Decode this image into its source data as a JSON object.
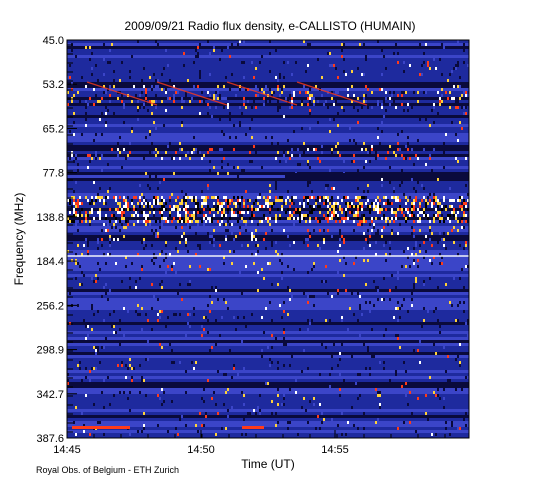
{
  "chart_data": {
    "type": "heatmap",
    "title": "2009/09/21  Radio flux density, e-CALLISTO (HUMAIN)",
    "xlabel": "Time (UT)",
    "ylabel": "Frequency (MHz)",
    "x_ticks": [
      "14:45",
      "14:50",
      "14:55"
    ],
    "y_ticks": [
      "45.0",
      "53.2",
      "65.2",
      "77.8",
      "138.8",
      "184.4",
      "256.2",
      "298.9",
      "342.7",
      "387.6"
    ],
    "colormap": [
      "#0a0a3c",
      "#1e2a9e",
      "#3b45c8",
      "#ffffff",
      "#ffd23a",
      "#ff3b1a",
      "#000000"
    ],
    "grid": false,
    "legend": "none"
  },
  "footer": {
    "credit": "Royal Obs. of Belgium - ETH Zurich"
  }
}
